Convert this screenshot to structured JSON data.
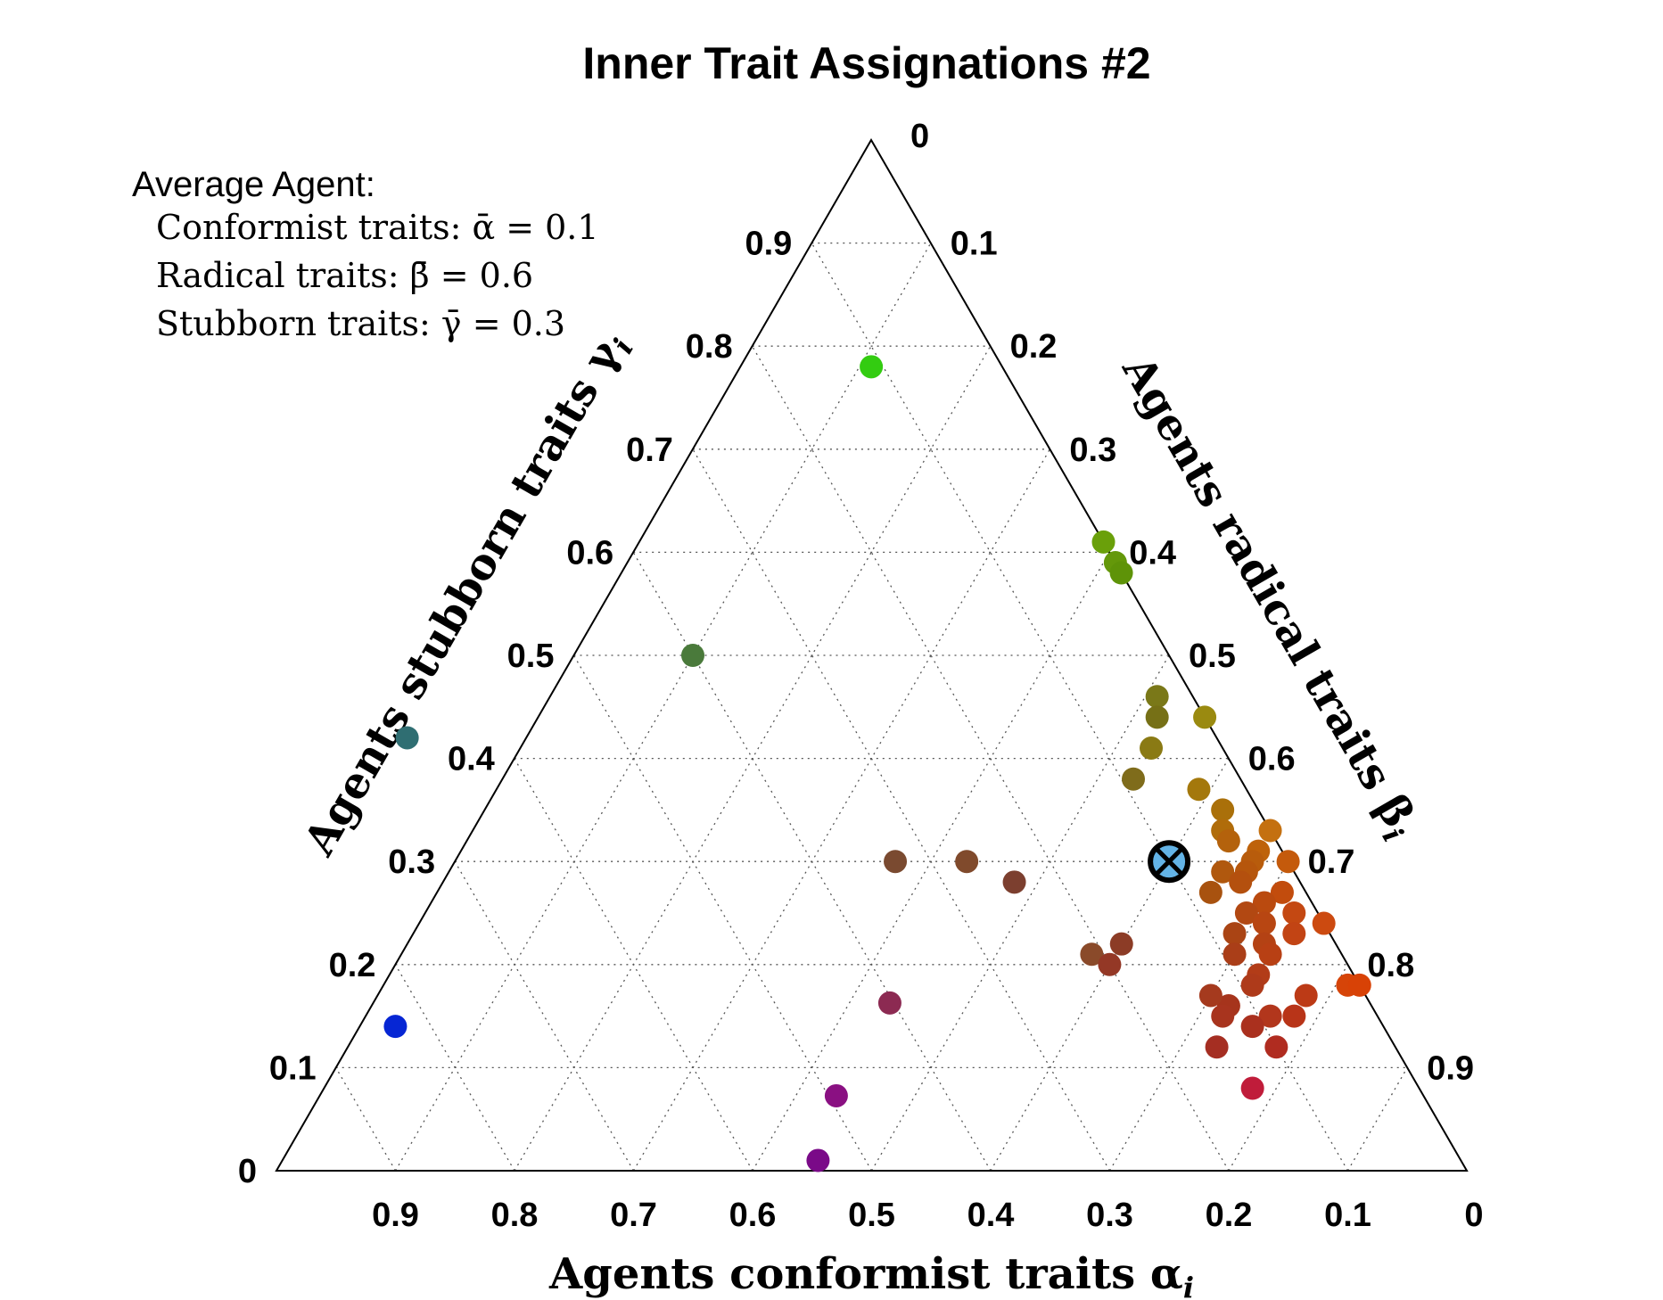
{
  "chart_data": {
    "type": "scatter",
    "subtype": "ternary",
    "title": "Inner Trait Assignations #2",
    "axes": {
      "alpha": {
        "label": "Agents conformist traits α",
        "subscript": "i",
        "ticks": [
          "0.9",
          "0.8",
          "0.7",
          "0.6",
          "0.5",
          "0.4",
          "0.3",
          "0.2",
          "0.1",
          "0"
        ]
      },
      "beta": {
        "label": "Agents radical traits β",
        "subscript": "i",
        "ticks": [
          "0.1",
          "0.2",
          "0.3",
          "0.4",
          "0.5",
          "0.6",
          "0.7",
          "0.8",
          "0.9"
        ]
      },
      "gamma": {
        "label": "Agents stubborn traits γ",
        "subscript": "i",
        "ticks": [
          "0.9",
          "0.8",
          "0.7",
          "0.6",
          "0.5",
          "0.4",
          "0.3",
          "0.2",
          "0.1",
          "0"
        ]
      }
    },
    "apex_label": "0",
    "legend": {
      "heading": "Average Agent:",
      "lines": [
        "Conformist traits: ᾱ = 0.1",
        "Radical traits: β̄ = 0.6",
        "Stubborn traits: γ̄ = 0.3"
      ]
    },
    "average_agent": {
      "alpha": 0.1,
      "beta": 0.6,
      "gamma": 0.3,
      "marker": "circled-x",
      "color": "#63b3e6"
    },
    "points": [
      {
        "alpha": 0.11,
        "beta": 0.11,
        "gamma": 0.78,
        "color": "#33cc11"
      },
      {
        "alpha": 0.0,
        "beta": 0.39,
        "gamma": 0.61,
        "color": "#6aa00a"
      },
      {
        "alpha": 0.0,
        "beta": 0.41,
        "gamma": 0.59,
        "color": "#64980a"
      },
      {
        "alpha": 0.0,
        "beta": 0.42,
        "gamma": 0.58,
        "color": "#5e9308"
      },
      {
        "alpha": 0.4,
        "beta": 0.1,
        "gamma": 0.5,
        "color": "#4a7a3b"
      },
      {
        "alpha": 0.68,
        "beta": -0.1,
        "gamma": 0.42,
        "color": "#2f6e72"
      },
      {
        "alpha": 0.03,
        "beta": 0.51,
        "gamma": 0.46,
        "color": "#7a7818"
      },
      {
        "alpha": 0.04,
        "beta": 0.52,
        "gamma": 0.44,
        "color": "#767016"
      },
      {
        "alpha": 0.0,
        "beta": 0.56,
        "gamma": 0.44,
        "color": "#9a8a10"
      },
      {
        "alpha": 0.06,
        "beta": 0.53,
        "gamma": 0.41,
        "color": "#8a7a14"
      },
      {
        "alpha": 0.09,
        "beta": 0.53,
        "gamma": 0.38,
        "color": "#7f6c1b"
      },
      {
        "alpha": 0.04,
        "beta": 0.59,
        "gamma": 0.37,
        "color": "#a4780c"
      },
      {
        "alpha": 0.03,
        "beta": 0.62,
        "gamma": 0.35,
        "color": "#aa700a"
      },
      {
        "alpha": 0.04,
        "beta": 0.63,
        "gamma": 0.33,
        "color": "#b06c0a"
      },
      {
        "alpha": 0.0,
        "beta": 0.67,
        "gamma": 0.33,
        "color": "#c47010"
      },
      {
        "alpha": 0.04,
        "beta": 0.64,
        "gamma": 0.32,
        "color": "#b4620c"
      },
      {
        "alpha": 0.02,
        "beta": 0.67,
        "gamma": 0.31,
        "color": "#be620a"
      },
      {
        "alpha": 0.03,
        "beta": 0.67,
        "gamma": 0.3,
        "color": "#b85c0c"
      },
      {
        "alpha": 0.0,
        "beta": 0.7,
        "gamma": 0.3,
        "color": "#c45a0c"
      },
      {
        "alpha": 0.06,
        "beta": 0.65,
        "gamma": 0.29,
        "color": "#b0580e"
      },
      {
        "alpha": 0.04,
        "beta": 0.67,
        "gamma": 0.29,
        "color": "#b6560c"
      },
      {
        "alpha": 0.05,
        "beta": 0.67,
        "gamma": 0.28,
        "color": "#b4500e"
      },
      {
        "alpha": 0.08,
        "beta": 0.65,
        "gamma": 0.27,
        "color": "#a8520f"
      },
      {
        "alpha": 0.02,
        "beta": 0.71,
        "gamma": 0.27,
        "color": "#c24c0d"
      },
      {
        "alpha": 0.04,
        "beta": 0.7,
        "gamma": 0.26,
        "color": "#ba4a0f"
      },
      {
        "alpha": 0.06,
        "beta": 0.69,
        "gamma": 0.25,
        "color": "#b24812"
      },
      {
        "alpha": 0.02,
        "beta": 0.73,
        "gamma": 0.25,
        "color": "#c44812"
      },
      {
        "alpha": 0.05,
        "beta": 0.71,
        "gamma": 0.24,
        "color": "#b84612"
      },
      {
        "alpha": 0.0,
        "beta": 0.76,
        "gamma": 0.24,
        "color": "#cc4a10"
      },
      {
        "alpha": 0.08,
        "beta": 0.69,
        "gamma": 0.23,
        "color": "#aa4414"
      },
      {
        "alpha": 0.03,
        "beta": 0.74,
        "gamma": 0.23,
        "color": "#c24414"
      },
      {
        "alpha": 0.06,
        "beta": 0.72,
        "gamma": 0.22,
        "color": "#b44214"
      },
      {
        "alpha": 0.06,
        "beta": 0.73,
        "gamma": 0.21,
        "color": "#b84014"
      },
      {
        "alpha": 0.09,
        "beta": 0.7,
        "gamma": 0.21,
        "color": "#aa3e18"
      },
      {
        "alpha": 0.08,
        "beta": 0.73,
        "gamma": 0.19,
        "color": "#b23c18"
      },
      {
        "alpha": 0.01,
        "beta": 0.81,
        "gamma": 0.18,
        "color": "#d64408"
      },
      {
        "alpha": 0.0,
        "beta": 0.82,
        "gamma": 0.18,
        "color": "#d84206"
      },
      {
        "alpha": 0.09,
        "beta": 0.73,
        "gamma": 0.18,
        "color": "#ae3a1a"
      },
      {
        "alpha": 0.12,
        "beta": 0.72,
        "gamma": 0.16,
        "color": "#a6341c"
      },
      {
        "alpha": 0.09,
        "beta": 0.76,
        "gamma": 0.15,
        "color": "#b2361c"
      },
      {
        "alpha": 0.13,
        "beta": 0.7,
        "gamma": 0.17,
        "color": "#a53a1e"
      },
      {
        "alpha": 0.07,
        "beta": 0.78,
        "gamma": 0.15,
        "color": "#b83418"
      },
      {
        "alpha": 0.11,
        "beta": 0.75,
        "gamma": 0.14,
        "color": "#aa301e"
      },
      {
        "alpha": 0.21,
        "beta": 0.58,
        "gamma": 0.21,
        "color": "#8a4a2a"
      },
      {
        "alpha": 0.33,
        "beta": 0.37,
        "gamma": 0.3,
        "color": "#7a4a30"
      },
      {
        "alpha": 0.27,
        "beta": 0.43,
        "gamma": 0.3,
        "color": "#804a2c"
      },
      {
        "alpha": 0.24,
        "beta": 0.48,
        "gamma": 0.28,
        "color": "#7c3f2f"
      },
      {
        "alpha": 0.18,
        "beta": 0.6,
        "gamma": 0.22,
        "color": "#8c3c26"
      },
      {
        "alpha": 0.2,
        "beta": 0.6,
        "gamma": 0.2,
        "color": "#943826"
      },
      {
        "alpha": 0.13,
        "beta": 0.72,
        "gamma": 0.15,
        "color": "#a8341e"
      },
      {
        "alpha": 0.05,
        "beta": 0.78,
        "gamma": 0.17,
        "color": "#bc3a16"
      },
      {
        "alpha": 0.15,
        "beta": 0.73,
        "gamma": 0.12,
        "color": "#a52e22"
      },
      {
        "alpha": 0.1,
        "beta": 0.78,
        "gamma": 0.12,
        "color": "#b02c20"
      },
      {
        "alpha": 0.39,
        "beta": 0.45,
        "gamma": 0.14,
        "color": "#8c2a52"
      },
      {
        "alpha": 0.14,
        "beta": 0.78,
        "gamma": 0.08,
        "color": "#c01c3a"
      },
      {
        "alpha": 0.48,
        "beta": 0.45,
        "gamma": 0.05,
        "color": "#8a1082"
      },
      {
        "alpha": 0.54,
        "beta": 0.45,
        "gamma": 0.01,
        "color": "#7a0a88"
      },
      {
        "alpha": 0.83,
        "beta": 0.03,
        "gamma": 0.14,
        "color": "#0626d4"
      }
    ]
  }
}
